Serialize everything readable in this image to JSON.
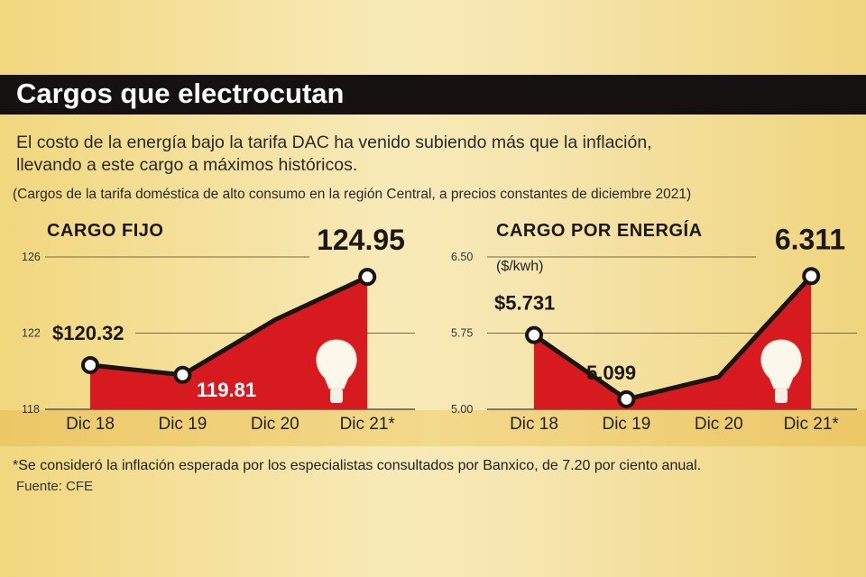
{
  "title": "Cargos que electrocutan",
  "subtitle_1": "El costo de la energía bajo la tarifa DAC ha venido subiendo más que la inflación,",
  "subtitle_2": "llevando a este cargo a máximos históricos.",
  "note": "(Cargos de la tarifa doméstica de alto consumo en la región Central, a precios constantes de diciembre 2021)",
  "footnote": "*Se consideró la inflación esperada por los especialistas consultados por Banxico, de 7.20 por ciento anual.",
  "source": "Fuente: CFE",
  "colors": {
    "fill": "#d71920",
    "line": "#1a1411",
    "marker": "#ffffff"
  },
  "chart_data": [
    {
      "type": "area",
      "title": "CARGO FIJO",
      "unit": "",
      "categories": [
        "Dic 18",
        "Dic 19",
        "Dic 20",
        "Dic 21*"
      ],
      "values": [
        120.32,
        119.81,
        122.7,
        124.95
      ],
      "labels": [
        "$120.32",
        "119.81",
        "",
        "124.95"
      ],
      "yticks": [
        "118",
        "122",
        "126"
      ],
      "ylim": [
        118,
        126
      ],
      "marked": [
        true,
        true,
        false,
        true
      ]
    },
    {
      "type": "area",
      "title": "CARGO POR ENERGÍA",
      "unit": "($/kwh)",
      "categories": [
        "Dic 18",
        "Dic 19",
        "Dic 20",
        "Dic 21*"
      ],
      "values": [
        5.731,
        5.099,
        5.32,
        6.311
      ],
      "labels": [
        "$5.731",
        "5.099",
        "",
        "6.311"
      ],
      "yticks": [
        "5.00",
        "5.75",
        "6.50"
      ],
      "ylim": [
        5.0,
        6.5
      ],
      "marked": [
        true,
        true,
        false,
        true
      ]
    }
  ]
}
